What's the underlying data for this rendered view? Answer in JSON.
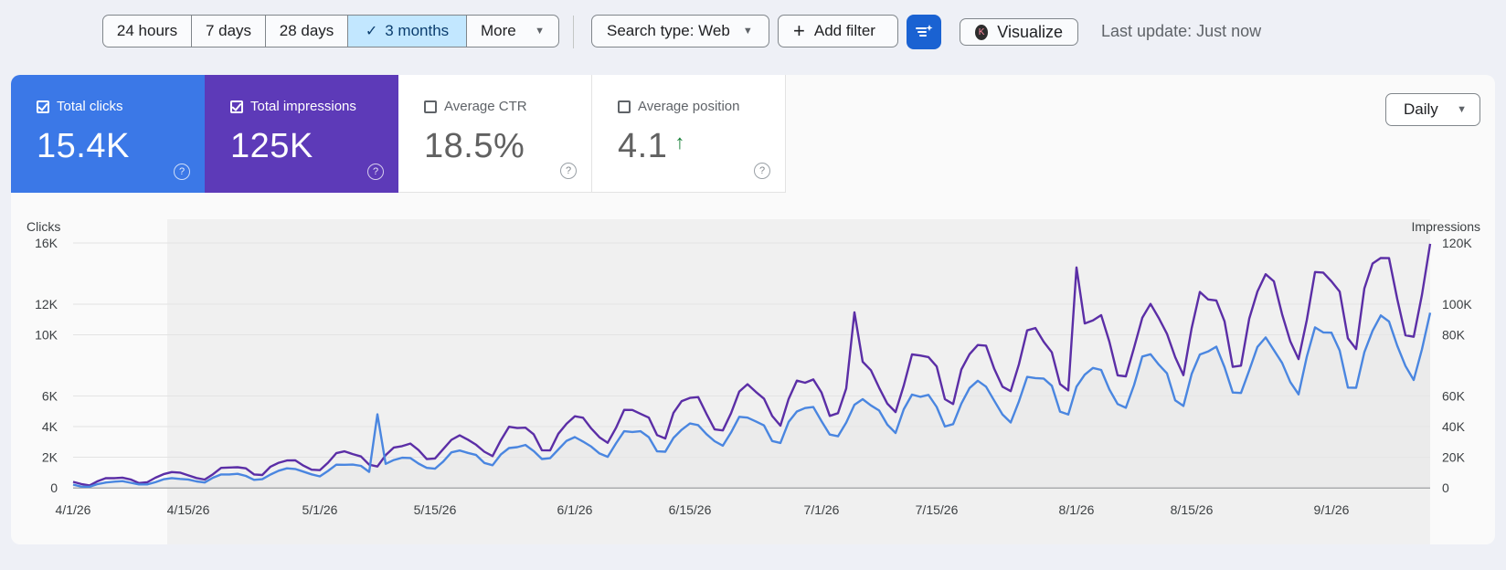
{
  "toolbar": {
    "ranges": [
      "24 hours",
      "7 days",
      "28 days",
      "3 months",
      "More"
    ],
    "selected_range": "3 months",
    "search_type": "Search type: Web",
    "add_filter": "Add filter",
    "visualize_badge": "K",
    "visualize": "Visualize",
    "last_update": "Last update: Just now"
  },
  "metrics": [
    {
      "label": "Total clicks",
      "value": "15.4K",
      "checked": true,
      "color": "#3b78e7"
    },
    {
      "label": "Total impressions",
      "value": "125K",
      "checked": true,
      "color": "#5d3ab8"
    },
    {
      "label": "Average CTR",
      "value": "18.5%",
      "checked": false
    },
    {
      "label": "Average position",
      "value": "4.1",
      "checked": false
    }
  ],
  "granularity": "Daily",
  "chart_data": {
    "type": "line",
    "x_start": "4/1/26",
    "x_end": "9/13/26",
    "x_tick_labels": [
      "4/1/26",
      "4/15/26",
      "5/1/26",
      "5/15/26",
      "6/1/26",
      "6/15/26",
      "7/1/26",
      "7/15/26",
      "8/1/26",
      "8/15/26",
      "9/1/26"
    ],
    "ylabel_left": "Clicks",
    "ylabel_right": "Impressions",
    "y_left_ticks": [
      "16K",
      "12K",
      "10K",
      "6K",
      "4K",
      "2K",
      "0"
    ],
    "y_right_ticks": [
      "120K",
      "100K",
      "80K",
      "60K",
      "40K",
      "20K",
      "0"
    ],
    "ylim_left": [
      0,
      16000
    ],
    "ylim_right": [
      0,
      120000
    ],
    "grid": true,
    "series": [
      {
        "name": "Clicks",
        "axis": "left",
        "color": "#4a86e0",
        "trough_start": 50,
        "trough_end": 7000,
        "peak_start": 300,
        "peak_end": 11500,
        "spikes": [
          {
            "date": "5/8/26",
            "value": 4800
          }
        ]
      },
      {
        "name": "Impressions",
        "axis": "right",
        "color": "#5b2ea6",
        "trough_start": 1000,
        "trough_end": 72000,
        "peak_start": 4000,
        "peak_end": 120000,
        "spikes": [
          {
            "date": "7/5/26",
            "value": 86000
          },
          {
            "date": "8/1/26",
            "value": 108000
          }
        ]
      }
    ]
  }
}
